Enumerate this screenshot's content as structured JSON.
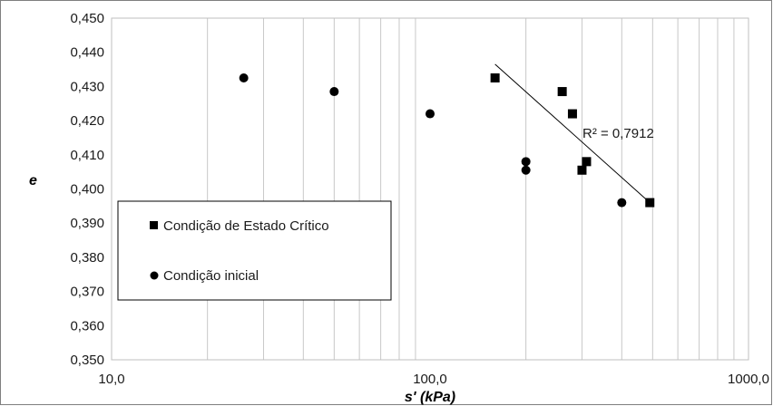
{
  "chart_data": {
    "type": "scatter",
    "x_scale": "log",
    "xlabel": "s' (kPa)",
    "ylabel": "e",
    "xlim": [
      10,
      1000
    ],
    "ylim": [
      0.35,
      0.45
    ],
    "x_tick_labels": [
      "10,0",
      "100,0",
      "1000,0"
    ],
    "y_tick_labels": [
      "0,450",
      "0,440",
      "0,430",
      "0,420",
      "0,410",
      "0,400",
      "0,390",
      "0,380",
      "0,370",
      "0,360",
      "0,350"
    ],
    "y_ticks": [
      0.45,
      0.44,
      0.43,
      0.42,
      0.41,
      0.4,
      0.39,
      0.38,
      0.37,
      0.36,
      0.35
    ],
    "grid": "vertical log minor lines",
    "legend_position": "lower-left",
    "series": [
      {
        "name": "Condição de Estado Crítico",
        "marker": "square",
        "color": "#000000",
        "points": [
          [
            160,
            0.4325
          ],
          [
            260,
            0.4285
          ],
          [
            280,
            0.422
          ],
          [
            310,
            0.408
          ],
          [
            300,
            0.4055
          ],
          [
            490,
            0.396
          ]
        ]
      },
      {
        "name": "Condição inicial",
        "marker": "circle",
        "color": "#000000",
        "points": [
          [
            26,
            0.4325
          ],
          [
            50,
            0.4285
          ],
          [
            100,
            0.422
          ],
          [
            200,
            0.408
          ],
          [
            200,
            0.4055
          ],
          [
            400,
            0.396
          ]
        ]
      }
    ],
    "trendline": {
      "series": "Condição de Estado Crítico",
      "from": [
        160,
        0.4365
      ],
      "to": [
        490,
        0.396
      ],
      "label": "R² = 0,7912"
    }
  }
}
